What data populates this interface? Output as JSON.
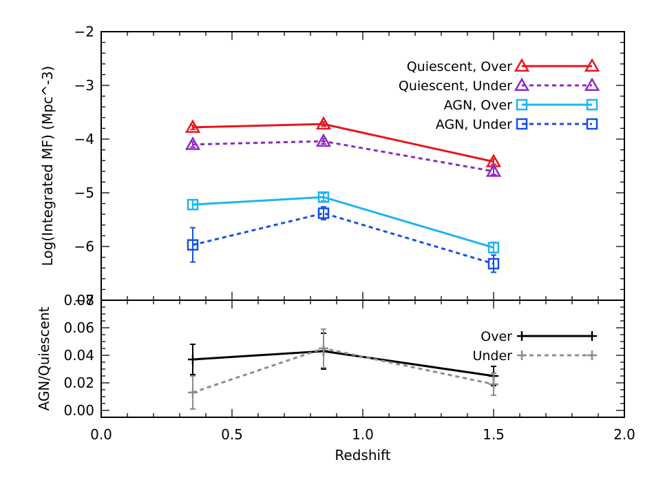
{
  "chart_data": [
    {
      "type": "line",
      "panel": "top",
      "xlabel": "",
      "ylabel": "Log(Integrated MF) (Mpc^-3)",
      "xlim": [
        0.0,
        2.0
      ],
      "ylim": [
        -7,
        -2
      ],
      "x_ticks": [],
      "y_ticks": [
        -2,
        -3,
        -4,
        -5,
        -6,
        -7
      ],
      "legend_position": "top-right",
      "series": [
        {
          "name": "Quiescent, Over",
          "color": "#e8141c",
          "dash": "solid",
          "marker": "triangle",
          "x": [
            0.35,
            0.85,
            1.5
          ],
          "y": [
            -3.78,
            -3.72,
            -4.42
          ],
          "yerr": [
            0.04,
            0.04,
            0.05
          ]
        },
        {
          "name": "Quiescent, Under",
          "color": "#8c28c8",
          "dash": "dashed",
          "marker": "triangle",
          "x": [
            0.35,
            0.85,
            1.5
          ],
          "y": [
            -4.1,
            -4.04,
            -4.6
          ],
          "yerr": [
            0.05,
            0.05,
            0.06
          ]
        },
        {
          "name": "AGN, Over",
          "color": "#1eb4f0",
          "dash": "solid",
          "marker": "square",
          "x": [
            0.35,
            0.85,
            1.5
          ],
          "y": [
            -5.22,
            -5.08,
            -6.02
          ],
          "yerr": [
            0.09,
            0.07,
            0.1
          ]
        },
        {
          "name": "AGN, Under",
          "color": "#1450e6",
          "dash": "dashed",
          "marker": "square",
          "x": [
            0.35,
            0.85,
            1.5
          ],
          "y": [
            -5.97,
            -5.38,
            -6.32
          ],
          "yerr": [
            0.32,
            0.12,
            0.16
          ]
        }
      ]
    },
    {
      "type": "line",
      "panel": "bottom",
      "xlabel": "Redshift",
      "ylabel": "AGN/Quiescent",
      "xlim": [
        0.0,
        2.0
      ],
      "ylim": [
        -0.005,
        0.08
      ],
      "x_ticks": [
        0.0,
        0.5,
        1.0,
        1.5,
        2.0
      ],
      "x_tick_labels": [
        "0.0",
        "0.5",
        "1.0",
        "1.5",
        "2.0"
      ],
      "y_ticks": [
        0.0,
        0.02,
        0.04,
        0.06,
        0.08
      ],
      "y_tick_labels": [
        "0.00",
        "0.02",
        "0.04",
        "0.06",
        "0.08"
      ],
      "legend_position": "top-right",
      "series": [
        {
          "name": "Over",
          "color": "#000000",
          "dash": "solid",
          "marker": "plus",
          "x": [
            0.35,
            0.85,
            1.5
          ],
          "y": [
            0.037,
            0.043,
            0.025
          ],
          "yerr": [
            0.011,
            0.013,
            0.007
          ]
        },
        {
          "name": "Under",
          "color": "#8c8c8c",
          "dash": "dashed",
          "marker": "plus",
          "x": [
            0.35,
            0.85,
            1.5
          ],
          "y": [
            0.013,
            0.045,
            0.019
          ],
          "yerr": [
            0.012,
            0.014,
            0.008
          ]
        }
      ]
    }
  ]
}
